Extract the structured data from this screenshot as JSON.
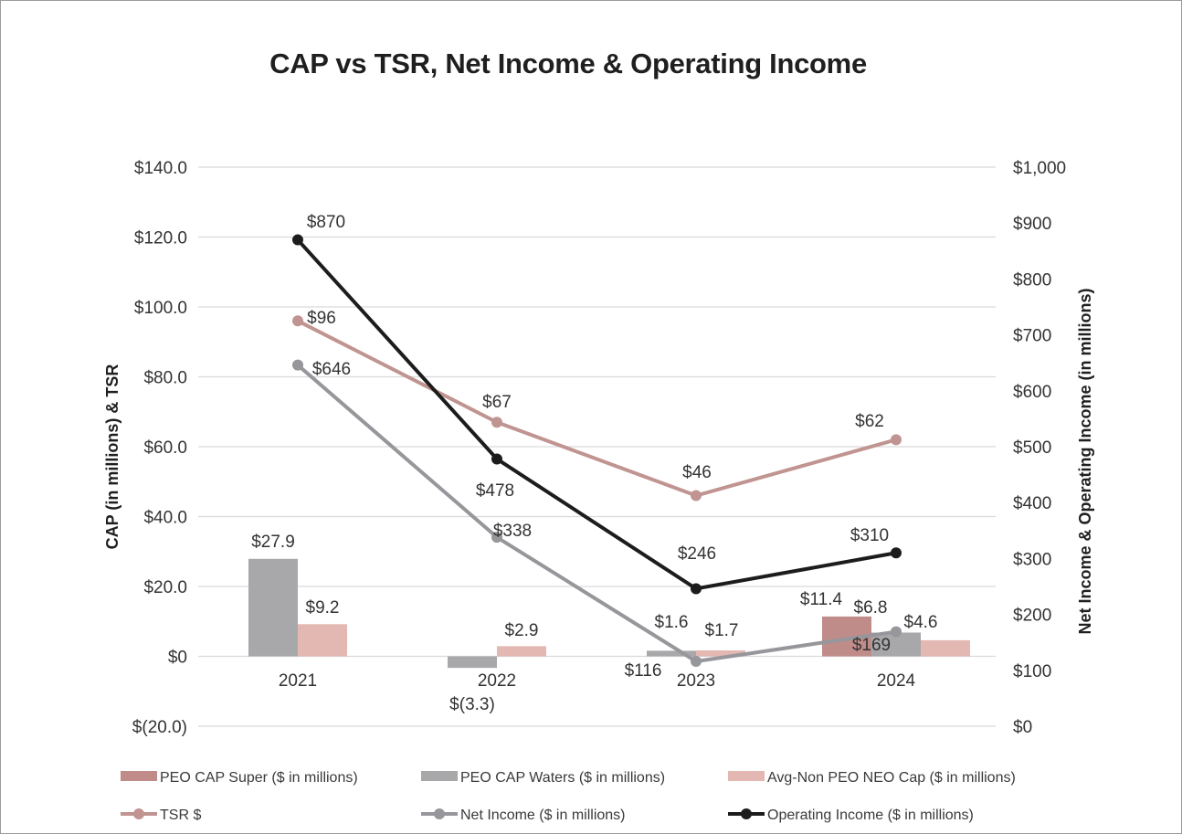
{
  "chart_data": {
    "type": "bar+line",
    "title": "CAP vs TSR, Net Income & Operating Income",
    "categories": [
      "2021",
      "2022",
      "2023",
      "2024"
    ],
    "left_axis": {
      "label": "CAP (in millions) & TSR",
      "range": [
        -20,
        140
      ],
      "ticks": [
        -20,
        0,
        20,
        40,
        60,
        80,
        100,
        120,
        140
      ],
      "tick_labels": [
        "$(20.0)",
        "$0",
        "$20.0",
        "$40.0",
        "$60.0",
        "$80.0",
        "$100.0",
        "$120.0",
        "$140.0"
      ]
    },
    "right_axis": {
      "label": "Net Income & Operating Income (in millions)",
      "range": [
        0,
        1000
      ],
      "ticks": [
        0,
        100,
        200,
        300,
        400,
        500,
        600,
        700,
        800,
        900,
        1000
      ],
      "tick_labels": [
        "$0",
        "$100",
        "$200",
        "$300",
        "$400",
        "$500",
        "$600",
        "$700",
        "$800",
        "$900",
        "$1,000"
      ]
    },
    "bar_series": [
      {
        "name": "PEO CAP Super ($ in millions)",
        "color": "#bf8c8a",
        "values": [
          null,
          null,
          null,
          11.4
        ],
        "labels": [
          null,
          null,
          null,
          "$11.4"
        ]
      },
      {
        "name": "PEO CAP Waters ($ in millions)",
        "color": "#a8a8ab",
        "values": [
          27.9,
          -3.3,
          1.6,
          6.8
        ],
        "labels": [
          "$27.9",
          "$(3.3)",
          "$1.6",
          "$6.8"
        ]
      },
      {
        "name": "Avg-Non PEO NEO Cap ($ in millions)",
        "color": "#e3b7b2",
        "values": [
          9.2,
          2.9,
          1.7,
          4.6
        ],
        "labels": [
          "$9.2",
          "$2.9",
          "$1.7",
          "$4.6"
        ]
      }
    ],
    "line_series": [
      {
        "name": "TSR $",
        "axis": "left",
        "color": "#c09490",
        "values": [
          96,
          67,
          46,
          62
        ],
        "labels": [
          "$96",
          "$67",
          "$46",
          "$62"
        ]
      },
      {
        "name": "Net Income ($ in millions)",
        "axis": "right",
        "color": "#96969b",
        "values": [
          646,
          338,
          116,
          169
        ],
        "labels": [
          "$646",
          "$338",
          "$116",
          "$169"
        ]
      },
      {
        "name": "Operating Income ($ in millions)",
        "axis": "right",
        "color": "#1c1c1c",
        "values": [
          870,
          478,
          246,
          310
        ],
        "labels": [
          "$870",
          "$478",
          "$246",
          "$310"
        ]
      }
    ],
    "legend": [
      {
        "name": "PEO CAP Super ($ in millions)",
        "kind": "bar",
        "color": "#bf8c8a"
      },
      {
        "name": "PEO CAP Waters ($ in millions)",
        "kind": "bar",
        "color": "#a8a8ab"
      },
      {
        "name": "Avg-Non PEO NEO Cap ($ in millions)",
        "kind": "bar",
        "color": "#e3b7b2"
      },
      {
        "name": "TSR $",
        "kind": "line",
        "color": "#c09490"
      },
      {
        "name": "Net Income ($ in millions)",
        "kind": "line",
        "color": "#96969b"
      },
      {
        "name": "Operating Income ($ in millions)",
        "kind": "line",
        "color": "#1c1c1c"
      }
    ],
    "grid": true,
    "legend_position": "bottom"
  }
}
